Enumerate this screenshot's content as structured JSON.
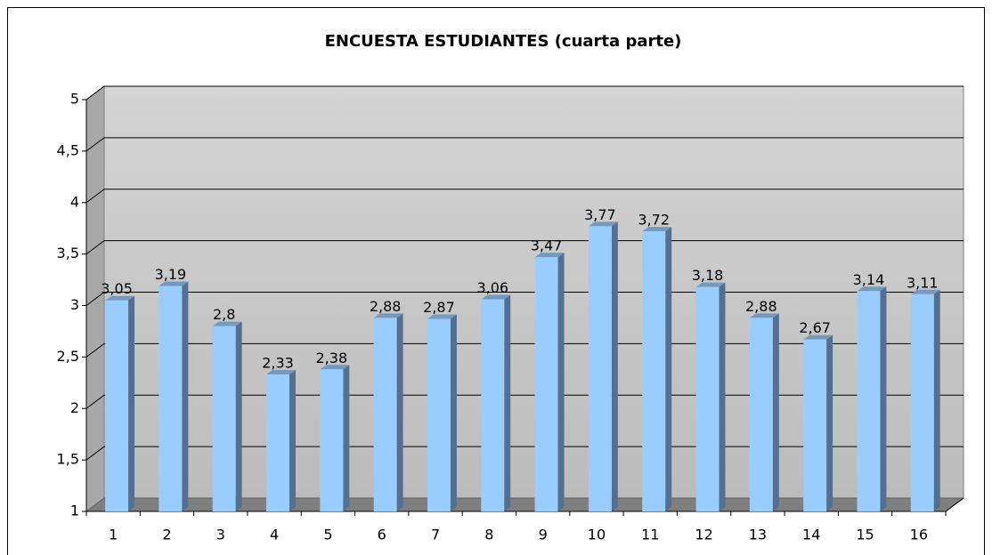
{
  "chart_data": {
    "type": "bar3d",
    "title": "ENCUESTA ESTUDIANTES (cuarta parte)",
    "categories": [
      "1",
      "2",
      "3",
      "4",
      "5",
      "6",
      "7",
      "8",
      "9",
      "10",
      "11",
      "12",
      "13",
      "14",
      "15",
      "16"
    ],
    "values": [
      3.05,
      3.19,
      2.8,
      2.33,
      2.38,
      2.88,
      2.87,
      3.06,
      3.47,
      3.77,
      3.72,
      3.18,
      2.88,
      2.67,
      3.14,
      3.11
    ],
    "value_labels": [
      "3,05",
      "3,19",
      "2,8",
      "2,33",
      "2,38",
      "2,88",
      "2,87",
      "3,06",
      "3,47",
      "3,77",
      "3,72",
      "3,18",
      "2,88",
      "2,67",
      "3,14",
      "3,11"
    ],
    "color": "#99ccff",
    "ylim": [
      1,
      5
    ],
    "yticks": [
      1,
      {
        "value": 1.5,
        "label": "1,5"
      },
      2,
      {
        "value": 2.5,
        "label": "2,5"
      },
      3,
      {
        "value": 3.5,
        "label": "3,5"
      },
      4,
      {
        "value": 4.5,
        "label": "4,5"
      },
      5
    ],
    "grid": true
  }
}
